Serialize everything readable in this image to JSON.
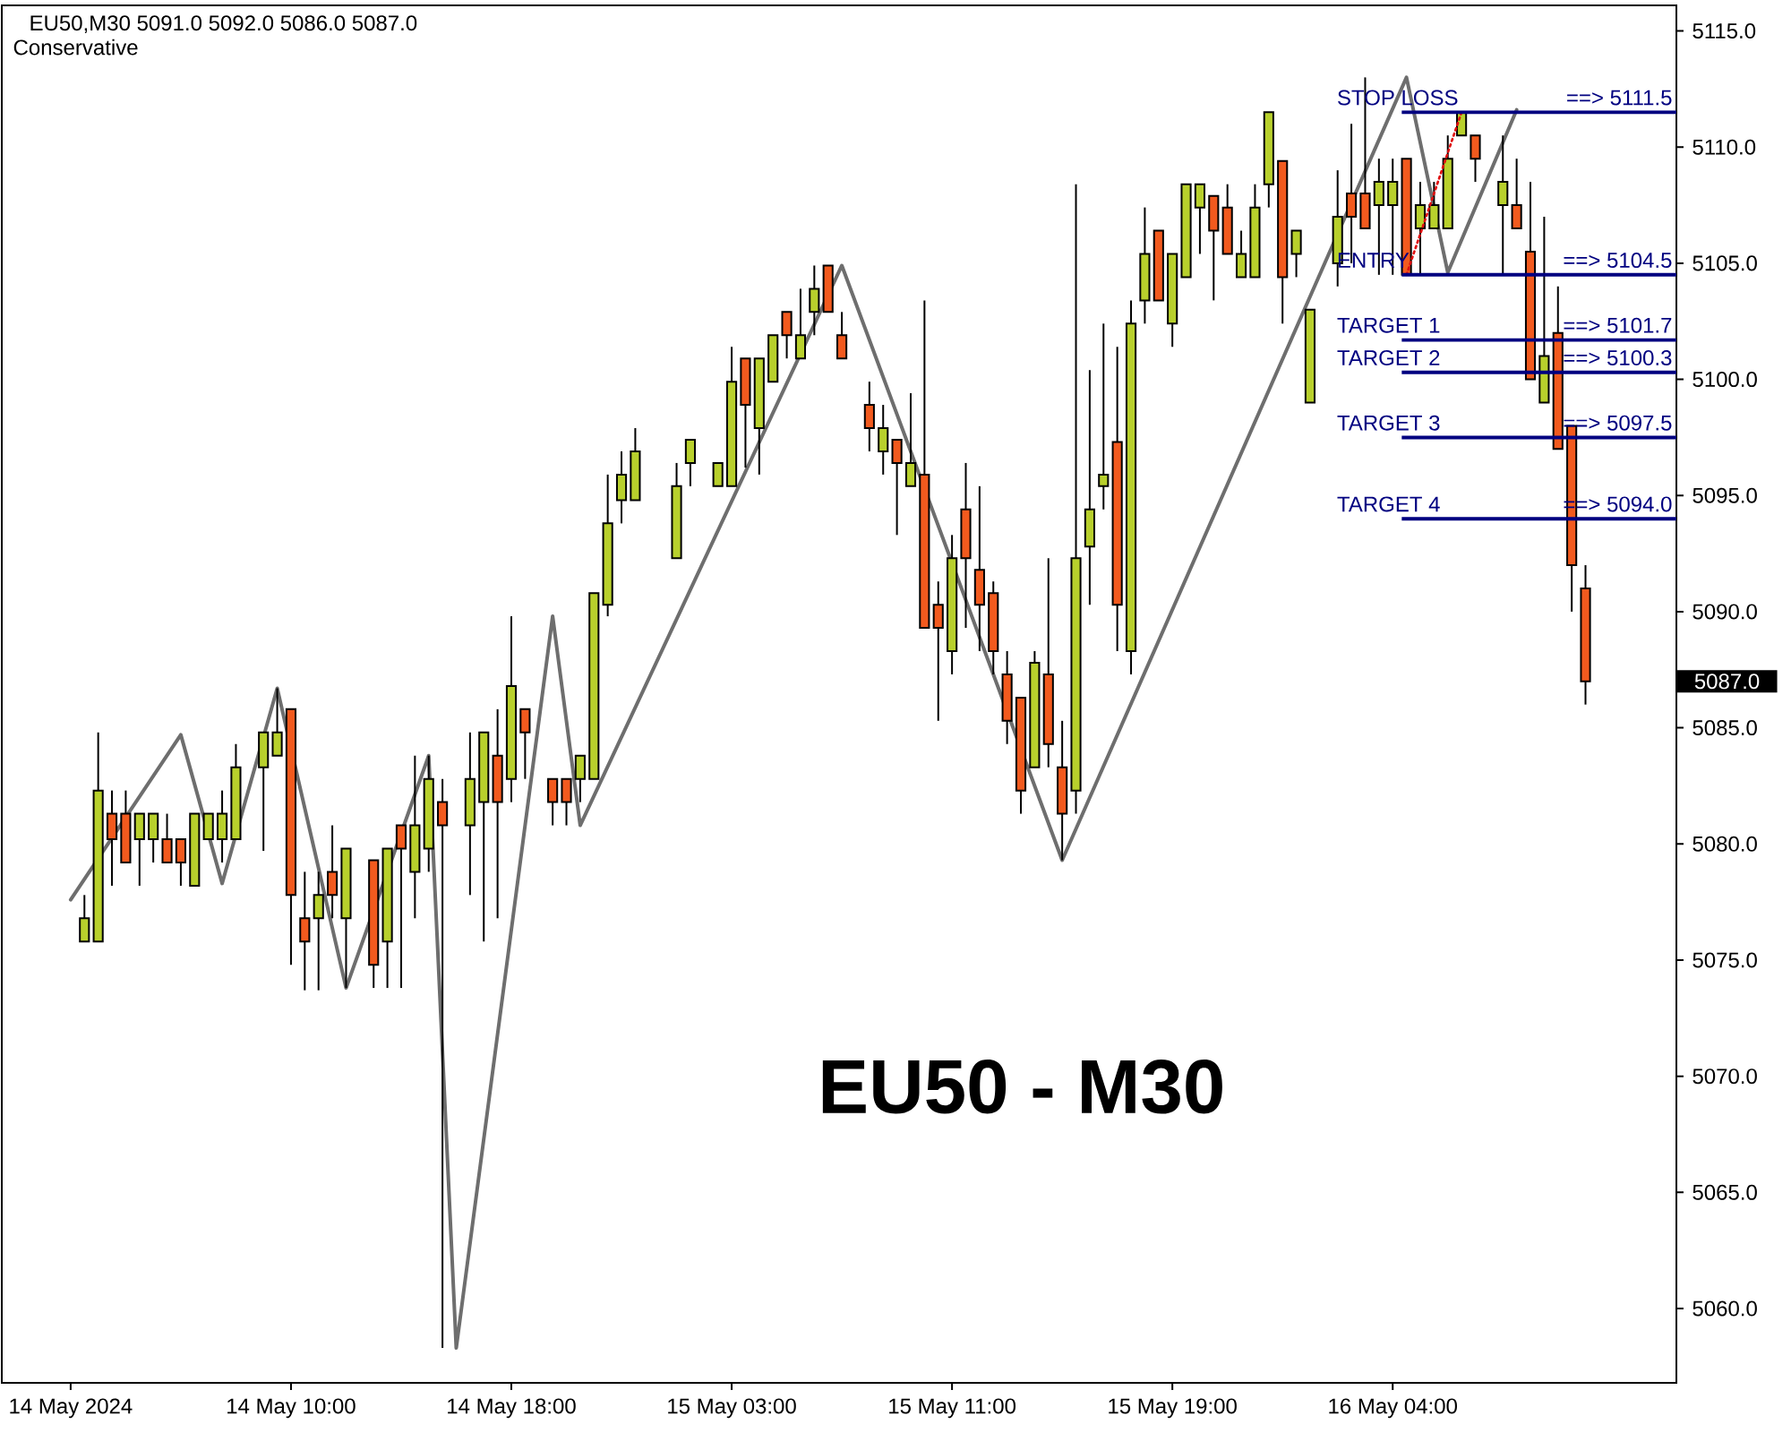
{
  "chart_data": {
    "type": "candlestick",
    "title": "EU50,M30 5091.0 5092.0 5086.0 5087.0",
    "subtitle": "Conservative",
    "categories": [
      "14 May 2024",
      null,
      null,
      null,
      null,
      null,
      null,
      null,
      null,
      null,
      null,
      null,
      null,
      null,
      null,
      null,
      "14 May 10:00",
      null,
      null,
      null,
      null,
      null,
      null,
      null,
      null,
      null,
      null,
      null,
      null,
      null,
      null,
      null,
      "14 May 18:00",
      null,
      null,
      null,
      null,
      null,
      null,
      null,
      null,
      null,
      null,
      null,
      null,
      null,
      null,
      null,
      "15 May 03:00",
      null,
      null,
      null,
      null,
      null,
      null,
      null,
      null,
      null,
      null,
      null,
      null,
      null,
      null,
      null,
      "15 May 11:00",
      null,
      null,
      null,
      null,
      null,
      null,
      null,
      null,
      null,
      null,
      null,
      null,
      null,
      null,
      null,
      "15 May 19:00",
      null,
      null,
      null,
      null,
      null,
      null,
      null,
      null,
      null,
      null,
      null,
      null,
      null,
      null,
      null,
      "16 May 04:00",
      null,
      null,
      null,
      null,
      null,
      null,
      null,
      null,
      null,
      null,
      null,
      null,
      null,
      null
    ],
    "ohlc": [
      null,
      [
        5075.8,
        5077.8,
        5075.8,
        5076.8
      ],
      [
        5075.8,
        5084.8,
        5075.8,
        5082.3
      ],
      [
        5081.3,
        5082.3,
        5078.2,
        5080.2
      ],
      [
        5081.3,
        5082.3,
        5079.2,
        5079.2
      ],
      [
        5080.2,
        5081.3,
        5078.2,
        5081.3
      ],
      [
        5080.2,
        5081.3,
        5079.2,
        5081.3
      ],
      [
        5080.2,
        5081.3,
        5079.2,
        5079.2
      ],
      [
        5080.2,
        5080.2,
        5078.2,
        5079.2
      ],
      [
        5078.2,
        5081.3,
        5078.2,
        5081.3
      ],
      [
        5080.2,
        5081.3,
        5080.2,
        5081.3
      ],
      [
        5080.2,
        5082.3,
        5079.2,
        5081.3
      ],
      [
        5080.2,
        5084.3,
        5080.2,
        5083.3
      ],
      null,
      [
        5083.3,
        5084.8,
        5079.7,
        5084.8
      ],
      [
        5083.8,
        5086.7,
        5083.8,
        5084.8
      ],
      [
        5085.8,
        5085.8,
        5074.8,
        5077.8
      ],
      [
        5076.8,
        5078.8,
        5073.7,
        5075.8
      ],
      [
        5076.8,
        5078.8,
        5073.7,
        5077.8
      ],
      [
        5078.8,
        5080.8,
        5076.8,
        5077.8
      ],
      [
        5076.8,
        5079.8,
        5073.8,
        5079.8
      ],
      null,
      [
        5079.3,
        5079.3,
        5073.8,
        5074.8
      ],
      [
        5075.8,
        5079.8,
        5073.8,
        5079.8
      ],
      [
        5080.8,
        5080.8,
        5073.8,
        5079.8
      ],
      [
        5078.8,
        5083.8,
        5076.8,
        5080.8
      ],
      [
        5079.8,
        5083.8,
        5078.8,
        5082.8
      ],
      [
        5081.8,
        5082.8,
        5058.3,
        5080.8
      ],
      null,
      [
        5080.8,
        5084.8,
        5077.8,
        5082.8
      ],
      [
        5081.8,
        5084.8,
        5075.8,
        5084.8
      ],
      [
        5083.8,
        5085.8,
        5076.8,
        5081.8
      ],
      [
        5082.8,
        5089.8,
        5081.8,
        5086.8
      ],
      [
        5085.8,
        5085.8,
        5082.8,
        5084.8
      ],
      null,
      [
        5082.8,
        5082.8,
        5080.8,
        5081.8
      ],
      [
        5082.8,
        5082.8,
        5080.8,
        5081.8
      ],
      [
        5082.8,
        5083.8,
        5081.8,
        5083.8
      ],
      [
        5082.8,
        5090.8,
        5082.8,
        5090.8
      ],
      [
        5090.3,
        5095.9,
        5089.8,
        5093.8
      ],
      [
        5094.8,
        5096.9,
        5093.8,
        5095.9
      ],
      [
        5094.8,
        5097.9,
        5094.8,
        5096.9
      ],
      null,
      null,
      [
        5092.3,
        5096.4,
        5092.3,
        5095.4
      ],
      [
        5096.4,
        5097.4,
        5095.4,
        5097.4
      ],
      null,
      [
        5095.4,
        5096.4,
        5095.4,
        5096.4
      ],
      [
        5095.4,
        5101.4,
        5095.4,
        5099.9
      ],
      [
        5100.9,
        5100.9,
        5096.2,
        5098.9
      ],
      [
        5097.9,
        5100.9,
        5095.9,
        5100.9
      ],
      [
        5099.9,
        5101.9,
        5099.9,
        5101.9
      ],
      [
        5102.9,
        5102.9,
        5100.9,
        5101.9
      ],
      [
        5100.9,
        5103.9,
        5100.9,
        5101.9
      ],
      [
        5102.9,
        5104.9,
        5101.9,
        5103.9
      ],
      [
        5104.9,
        5104.9,
        5102.9,
        5102.9
      ],
      [
        5101.9,
        5102.9,
        5100.9,
        5100.9
      ],
      null,
      [
        5098.9,
        5099.9,
        5096.9,
        5097.9
      ],
      [
        5096.9,
        5098.9,
        5095.9,
        5097.9
      ],
      [
        5097.4,
        5097.4,
        5093.3,
        5096.4
      ],
      [
        5095.4,
        5099.4,
        5095.4,
        5096.4
      ],
      [
        5095.9,
        5103.4,
        5089.3,
        5089.3
      ],
      [
        5090.3,
        5091.3,
        5085.3,
        5089.3
      ],
      [
        5088.3,
        5093.3,
        5087.3,
        5092.3
      ],
      [
        5094.4,
        5096.4,
        5089.3,
        5092.3
      ],
      [
        5091.8,
        5095.4,
        5088.3,
        5090.3
      ],
      [
        5090.8,
        5091.3,
        5087.3,
        5088.3
      ],
      [
        5087.3,
        5088.3,
        5084.3,
        5085.3
      ],
      [
        5086.3,
        5086.3,
        5081.3,
        5082.3
      ],
      [
        5083.3,
        5088.3,
        5083.3,
        5087.8
      ],
      [
        5087.3,
        5092.3,
        5083.3,
        5084.3
      ],
      [
        5083.3,
        5085.3,
        5079.3,
        5081.3
      ],
      [
        5082.3,
        5108.4,
        5081.3,
        5092.3
      ],
      [
        5092.8,
        5100.4,
        5090.3,
        5094.4
      ],
      [
        5095.4,
        5102.4,
        5094.4,
        5095.9
      ],
      [
        5097.3,
        5101.4,
        5088.3,
        5090.3
      ],
      [
        5088.3,
        5103.4,
        5087.3,
        5102.4
      ],
      [
        5103.4,
        5107.4,
        5102.4,
        5105.4
      ],
      [
        5106.4,
        5106.4,
        5103.4,
        5103.4
      ],
      [
        5102.4,
        5105.4,
        5101.4,
        5105.4
      ],
      [
        5104.4,
        5108.4,
        5104.4,
        5108.4
      ],
      [
        5107.4,
        5108.4,
        5105.4,
        5108.4
      ],
      [
        5107.9,
        5107.9,
        5103.4,
        5106.4
      ],
      [
        5107.4,
        5108.4,
        5105.4,
        5105.4
      ],
      [
        5104.4,
        5106.4,
        5104.4,
        5105.4
      ],
      [
        5104.4,
        5108.4,
        5104.4,
        5107.4
      ],
      [
        5108.4,
        5111.5,
        5107.4,
        5111.5
      ],
      [
        5109.4,
        5109.4,
        5102.4,
        5104.4
      ],
      [
        5105.4,
        5106.4,
        5104.4,
        5106.4
      ],
      [
        5099.0,
        5103.0,
        5099.0,
        5103.0
      ],
      null,
      [
        5105.0,
        5109.0,
        5104.0,
        5107.0
      ],
      [
        5108.0,
        5111.0,
        5105.0,
        5107.0
      ],
      [
        5108.0,
        5113.0,
        5106.5,
        5106.5
      ],
      [
        5107.5,
        5109.5,
        5104.5,
        5108.5
      ],
      [
        5107.5,
        5109.5,
        5104.5,
        5108.5
      ],
      [
        5109.5,
        5109.5,
        5104.5,
        5104.5
      ],
      [
        5106.5,
        5108.5,
        5104.5,
        5107.5
      ],
      [
        5106.5,
        5108.5,
        5106.5,
        5107.5
      ],
      [
        5106.5,
        5110.5,
        5106.5,
        5109.5
      ],
      [
        5110.5,
        5111.5,
        5110.5,
        5111.5
      ],
      [
        5110.5,
        5110.5,
        5108.5,
        5109.5
      ],
      null,
      [
        5107.5,
        5110.5,
        5104.5,
        5108.5
      ],
      [
        5107.5,
        5109.5,
        5106.5,
        5106.5
      ],
      [
        5105.5,
        5108.5,
        5100.0,
        5100.0
      ],
      [
        5099.0,
        5107.0,
        5099.0,
        5101.0
      ],
      [
        5102.0,
        5104.0,
        5097.0,
        5097.0
      ],
      [
        5098.0,
        5098.0,
        5090.0,
        5092.0
      ],
      [
        5091.0,
        5092.0,
        5086.0,
        5087.0
      ]
    ],
    "colors": [
      null,
      "#b8d02c",
      "#b8d02c",
      "#f25a1e",
      "#f25a1e",
      "#b8d02c",
      "#b8d02c",
      "#f25a1e",
      "#f25a1e",
      "#b8d02c",
      "#b8d02c",
      "#b8d02c",
      "#b8d02c",
      null,
      "#b8d02c",
      "#b8d02c",
      "#f25a1e",
      "#f25a1e",
      "#b8d02c",
      "#f25a1e",
      "#b8d02c",
      null,
      "#f25a1e",
      "#b8d02c",
      "#f25a1e",
      "#b8d02c",
      "#b8d02c",
      "#f25a1e",
      null,
      "#b8d02c",
      "#b8d02c",
      "#f25a1e",
      "#b8d02c",
      "#f25a1e",
      null,
      "#f25a1e",
      "#f25a1e",
      "#b8d02c",
      "#b8d02c",
      "#b8d02c",
      "#b8d02c",
      "#b8d02c",
      null,
      null,
      "#b8d02c",
      "#b8d02c",
      null,
      "#b8d02c",
      "#b8d02c",
      "#f25a1e",
      "#b8d02c",
      "#b8d02c",
      "#f25a1e",
      "#b8d02c",
      "#b8d02c",
      "#f25a1e",
      "#f25a1e",
      null,
      "#f25a1e",
      "#b8d02c",
      "#f25a1e",
      "#b8d02c",
      "#f25a1e",
      "#f25a1e",
      "#b8d02c",
      "#f25a1e",
      "#f25a1e",
      "#f25a1e",
      "#f25a1e",
      "#f25a1e",
      "#b8d02c",
      "#f25a1e",
      "#f25a1e",
      "#b8d02c",
      "#b8d02c",
      "#b8d02c",
      "#f25a1e",
      "#b8d02c",
      "#b8d02c",
      "#f25a1e",
      "#b8d02c",
      "#b8d02c",
      "#b8d02c",
      "#f25a1e",
      "#f25a1e",
      "#b8d02c",
      "#b8d02c",
      "#b8d02c",
      "#f25a1e",
      "#b8d02c",
      "#b8d02c",
      null,
      "#b8d02c",
      "#f25a1e",
      "#f25a1e",
      "#b8d02c",
      "#b8d02c",
      "#f25a1e",
      "#b8d02c",
      "#b8d02c",
      "#b8d02c",
      "#b8d02c",
      "#f25a1e",
      null,
      "#b8d02c",
      "#f25a1e",
      "#f25a1e",
      "#b8d02c",
      "#f25a1e",
      "#f25a1e",
      "#f25a1e"
    ],
    "series": [
      {
        "type": "line",
        "color": "#6e6e6e",
        "values": [
          5077.6,
          null,
          null,
          null,
          null,
          null,
          null,
          null,
          5084.7,
          null,
          null,
          5078.3,
          null,
          null,
          null,
          5086.7,
          null,
          null,
          null,
          null,
          5073.8,
          null,
          null,
          null,
          null,
          null,
          5083.8,
          null,
          5058.3,
          null,
          null,
          null,
          null,
          null,
          null,
          5089.8,
          null,
          5080.8,
          null,
          null,
          null,
          null,
          null,
          null,
          null,
          null,
          null,
          null,
          null,
          null,
          null,
          null,
          null,
          null,
          null,
          null,
          5104.9,
          null,
          null,
          null,
          null,
          null,
          null,
          null,
          null,
          null,
          null,
          null,
          null,
          null,
          null,
          null,
          5079.3,
          null,
          null,
          null,
          null,
          null,
          null,
          null,
          null,
          null,
          null,
          null,
          null,
          null,
          null,
          null,
          null,
          null,
          null,
          null,
          null,
          null,
          null,
          null,
          null,
          5113.0,
          null,
          null,
          5104.6,
          null,
          null,
          null,
          null,
          5111.6,
          null,
          null,
          null,
          null,
          null
        ]
      },
      {
        "type": "line",
        "color": "#e01010",
        "line_style": "dotted",
        "values": [
          null,
          null,
          null,
          null,
          null,
          null,
          null,
          null,
          null,
          null,
          null,
          null,
          null,
          null,
          null,
          null,
          null,
          null,
          null,
          null,
          null,
          null,
          null,
          null,
          null,
          null,
          null,
          null,
          null,
          null,
          null,
          null,
          null,
          null,
          null,
          null,
          null,
          null,
          null,
          null,
          null,
          null,
          null,
          null,
          null,
          null,
          null,
          null,
          null,
          null,
          null,
          null,
          null,
          null,
          null,
          null,
          null,
          null,
          null,
          null,
          null,
          null,
          null,
          null,
          null,
          null,
          null,
          null,
          null,
          null,
          null,
          null,
          null,
          null,
          null,
          null,
          null,
          null,
          null,
          null,
          null,
          null,
          null,
          null,
          null,
          null,
          null,
          null,
          null,
          null,
          null,
          null,
          null,
          null,
          null,
          null,
          null,
          5104.5,
          null,
          null,
          null,
          5111.5,
          null,
          null,
          null,
          null,
          null,
          null,
          null,
          null,
          null
        ]
      }
    ],
    "ylim": [
      5056.8,
      5116.1
    ],
    "yticks": [
      {
        "value": 5060,
        "label": "5060.0"
      },
      {
        "value": 5065,
        "label": "5065.0"
      },
      {
        "value": 5070,
        "label": "5070.0"
      },
      {
        "value": 5075,
        "label": "5075.0"
      },
      {
        "value": 5080,
        "label": "5080.0"
      },
      {
        "value": 5085,
        "label": "5085.0"
      },
      {
        "value": 5090,
        "label": "5090.0"
      },
      {
        "value": 5095,
        "label": "5095.0"
      },
      {
        "value": 5100,
        "label": "5100.0"
      },
      {
        "value": 5105,
        "label": "5105.0"
      },
      {
        "value": 5110,
        "label": "5110.0"
      },
      {
        "value": 5115,
        "label": "5115.0"
      }
    ],
    "ref_lines": [
      {
        "axis": "y",
        "value": 5111.5,
        "label": "STOP LOSS",
        "color": "#000080"
      },
      {
        "axis": "y",
        "value": 5104.5,
        "label": "ENTRY",
        "color": "#000080"
      },
      {
        "axis": "y",
        "value": 5101.7,
        "label": "TARGET 1",
        "color": "#000080"
      },
      {
        "axis": "y",
        "value": 5100.3,
        "label": "TARGET 2",
        "color": "#000080"
      },
      {
        "axis": "y",
        "value": 5097.5,
        "label": "TARGET 3",
        "color": "#000080"
      },
      {
        "axis": "y",
        "value": 5094.0,
        "label": "TARGET 4",
        "color": "#000080"
      }
    ],
    "annotations": [
      {
        "text": "==> 5111.5",
        "y": 5111.5
      },
      {
        "text": "==> 5104.5",
        "y": 5104.5
      },
      {
        "text": "==> 5101.7",
        "y": 5101.7
      },
      {
        "text": "==> 5100.3",
        "y": 5100.3
      },
      {
        "text": "==> 5097.5",
        "y": 5097.5
      },
      {
        "text": "==> 5094.0",
        "y": 5094.0
      },
      "5087.0",
      "EU50 - M30"
    ]
  }
}
